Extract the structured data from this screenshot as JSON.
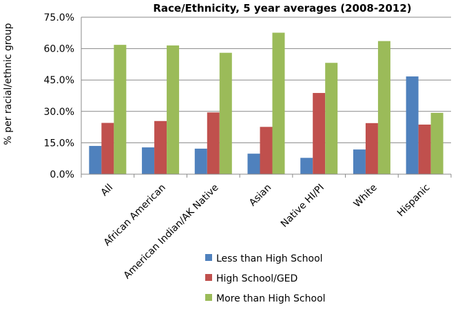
{
  "chart_data": {
    "type": "bar",
    "title": "Race/Ethnicity, 5 year averages (2008-2012)",
    "xlabel": "",
    "ylabel": "% per racial/ethnic group",
    "ylim": [
      0,
      75
    ],
    "yticks": [
      "0.0%",
      "15.0%",
      "30.0%",
      "45.0%",
      "60.0%",
      "75.0%"
    ],
    "ytick_values": [
      0,
      15,
      30,
      45,
      60,
      75
    ],
    "grid": true,
    "legend_position": "bottom",
    "categories": [
      "All",
      "African American",
      "American Indian/AK Native",
      "Asian",
      "Native HI/PI",
      "White",
      "Hispanic"
    ],
    "series": [
      {
        "name": "Less than High School",
        "color": "#4F81BD",
        "values": [
          13.5,
          12.8,
          12.2,
          9.8,
          7.8,
          11.8,
          46.7
        ]
      },
      {
        "name": "High School/GED",
        "color": "#C0504D",
        "values": [
          24.5,
          25.4,
          29.5,
          22.6,
          38.8,
          24.4,
          23.7
        ]
      },
      {
        "name": "More than High School",
        "color": "#9BBB59",
        "values": [
          61.8,
          61.5,
          58.0,
          67.6,
          53.2,
          63.6,
          29.3
        ]
      }
    ]
  }
}
